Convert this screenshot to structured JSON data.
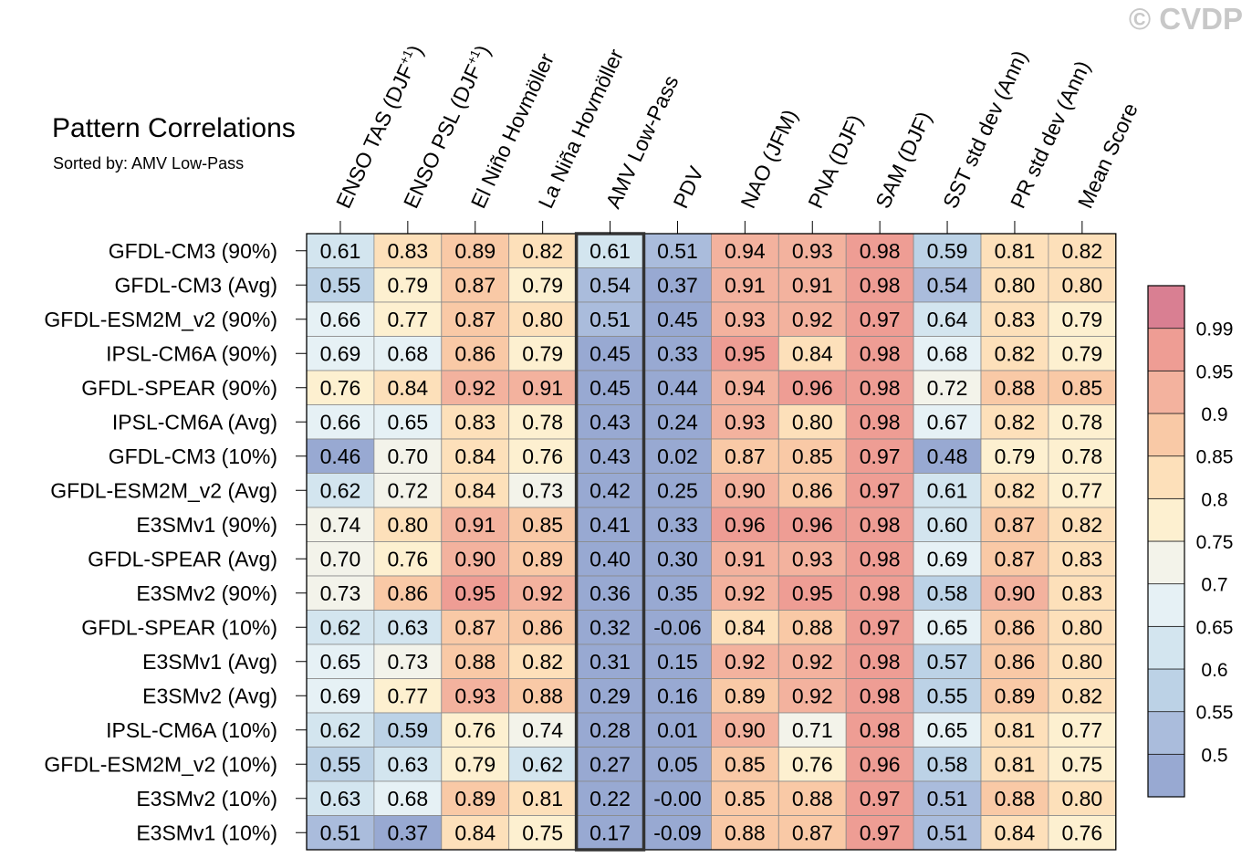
{
  "title": "Pattern Correlations",
  "subtitle": "Sorted by: AMV Low-Pass",
  "watermark": "© CVDP",
  "chart_data": {
    "type": "heatmap",
    "columns": [
      {
        "base": "ENSO TAS (DJF",
        "sup": "+1",
        "close": ")"
      },
      {
        "base": "ENSO PSL (DJF",
        "sup": "+1",
        "close": ")"
      },
      {
        "base": "El Niño Hovmöller",
        "sup": "",
        "close": ""
      },
      {
        "base": "La Niña Hovmöller",
        "sup": "",
        "close": ""
      },
      {
        "base": "AMV Low-Pass",
        "sup": "",
        "close": ""
      },
      {
        "base": "PDV",
        "sup": "",
        "close": ""
      },
      {
        "base": "NAO (JFM)",
        "sup": "",
        "close": ""
      },
      {
        "base": "PNA (DJF)",
        "sup": "",
        "close": ""
      },
      {
        "base": "SAM (DJF)",
        "sup": "",
        "close": ""
      },
      {
        "base": "SST std dev (Ann)",
        "sup": "",
        "close": ""
      },
      {
        "base": "PR std dev (Ann)",
        "sup": "",
        "close": ""
      },
      {
        "base": "Mean Score",
        "sup": "",
        "close": ""
      }
    ],
    "highlighted_column": 4,
    "rows": [
      "GFDL-CM3 (90%)",
      "GFDL-CM3 (Avg)",
      "GFDL-ESM2M_v2 (90%)",
      "IPSL-CM6A (90%)",
      "GFDL-SPEAR (90%)",
      "IPSL-CM6A (Avg)",
      "GFDL-CM3 (10%)",
      "GFDL-ESM2M_v2 (Avg)",
      "E3SMv1 (90%)",
      "GFDL-SPEAR (Avg)",
      "E3SMv2 (90%)",
      "GFDL-SPEAR (10%)",
      "E3SMv1 (Avg)",
      "E3SMv2 (Avg)",
      "IPSL-CM6A (10%)",
      "GFDL-ESM2M_v2 (10%)",
      "E3SMv2 (10%)",
      "E3SMv1 (10%)"
    ],
    "values": [
      [
        "0.61",
        "0.83",
        "0.89",
        "0.82",
        "0.61",
        "0.51",
        "0.94",
        "0.93",
        "0.98",
        "0.59",
        "0.81",
        "0.82"
      ],
      [
        "0.55",
        "0.79",
        "0.87",
        "0.79",
        "0.54",
        "0.37",
        "0.91",
        "0.91",
        "0.98",
        "0.54",
        "0.80",
        "0.80"
      ],
      [
        "0.66",
        "0.77",
        "0.87",
        "0.80",
        "0.51",
        "0.45",
        "0.93",
        "0.92",
        "0.97",
        "0.64",
        "0.83",
        "0.79"
      ],
      [
        "0.69",
        "0.68",
        "0.86",
        "0.79",
        "0.45",
        "0.33",
        "0.95",
        "0.84",
        "0.98",
        "0.68",
        "0.82",
        "0.79"
      ],
      [
        "0.76",
        "0.84",
        "0.92",
        "0.91",
        "0.45",
        "0.44",
        "0.94",
        "0.96",
        "0.98",
        "0.72",
        "0.88",
        "0.85"
      ],
      [
        "0.66",
        "0.65",
        "0.83",
        "0.78",
        "0.43",
        "0.24",
        "0.93",
        "0.80",
        "0.98",
        "0.67",
        "0.82",
        "0.78"
      ],
      [
        "0.46",
        "0.70",
        "0.84",
        "0.76",
        "0.43",
        "0.02",
        "0.87",
        "0.85",
        "0.97",
        "0.48",
        "0.79",
        "0.78"
      ],
      [
        "0.62",
        "0.72",
        "0.84",
        "0.73",
        "0.42",
        "0.25",
        "0.90",
        "0.86",
        "0.97",
        "0.61",
        "0.82",
        "0.77"
      ],
      [
        "0.74",
        "0.80",
        "0.91",
        "0.85",
        "0.41",
        "0.33",
        "0.96",
        "0.96",
        "0.98",
        "0.60",
        "0.87",
        "0.82"
      ],
      [
        "0.70",
        "0.76",
        "0.90",
        "0.89",
        "0.40",
        "0.30",
        "0.91",
        "0.93",
        "0.98",
        "0.69",
        "0.87",
        "0.83"
      ],
      [
        "0.73",
        "0.86",
        "0.95",
        "0.92",
        "0.36",
        "0.35",
        "0.92",
        "0.95",
        "0.98",
        "0.58",
        "0.90",
        "0.83"
      ],
      [
        "0.62",
        "0.63",
        "0.87",
        "0.86",
        "0.32",
        "-0.06",
        "0.84",
        "0.88",
        "0.97",
        "0.65",
        "0.86",
        "0.80"
      ],
      [
        "0.65",
        "0.73",
        "0.88",
        "0.82",
        "0.31",
        "0.15",
        "0.92",
        "0.92",
        "0.98",
        "0.57",
        "0.86",
        "0.80"
      ],
      [
        "0.69",
        "0.77",
        "0.93",
        "0.88",
        "0.29",
        "0.16",
        "0.89",
        "0.92",
        "0.98",
        "0.55",
        "0.89",
        "0.82"
      ],
      [
        "0.62",
        "0.59",
        "0.76",
        "0.74",
        "0.28",
        "0.01",
        "0.90",
        "0.71",
        "0.98",
        "0.65",
        "0.81",
        "0.77"
      ],
      [
        "0.55",
        "0.63",
        "0.79",
        "0.62",
        "0.27",
        "0.05",
        "0.85",
        "0.76",
        "0.96",
        "0.58",
        "0.81",
        "0.75"
      ],
      [
        "0.63",
        "0.68",
        "0.89",
        "0.81",
        "0.22",
        "-0.00",
        "0.85",
        "0.88",
        "0.97",
        "0.51",
        "0.88",
        "0.80"
      ],
      [
        "0.51",
        "0.37",
        "0.84",
        "0.75",
        "0.17",
        "-0.09",
        "0.88",
        "0.87",
        "0.97",
        "0.51",
        "0.84",
        "0.76"
      ]
    ],
    "colorbar": {
      "levels": [
        "0.5",
        "0.55",
        "0.6",
        "0.65",
        "0.7",
        "0.75",
        "0.8",
        "0.85",
        "0.9",
        "0.95",
        "0.99"
      ],
      "colors": [
        "#98a9d2",
        "#aabcdc",
        "#bcd2e6",
        "#d3e5ef",
        "#e6f1f5",
        "#f3f3ea",
        "#fdf0d0",
        "#fde0ba",
        "#f9c9a6",
        "#f3b29e",
        "#ee9d94",
        "#d97f92"
      ]
    }
  }
}
